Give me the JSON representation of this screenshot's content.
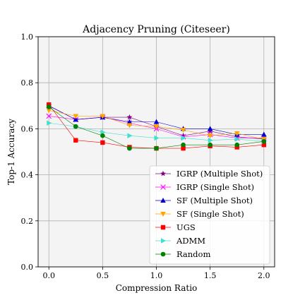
{
  "chart_data": {
    "type": "line",
    "title": "Adjacency Pruning (Citeseer)",
    "xlabel": "Compression Ratio",
    "ylabel": "Top-1 Accuracy",
    "xlim": [
      -0.1,
      2.1
    ],
    "ylim": [
      0.0,
      1.0
    ],
    "xticks": [
      "0.0",
      "0.5",
      "1.0",
      "1.5",
      "2.0"
    ],
    "yticks": [
      "0.0",
      "0.2",
      "0.4",
      "0.6",
      "0.8",
      "1.0"
    ],
    "grid": true,
    "legend_position": "lower-right",
    "x": [
      0.0,
      0.25,
      0.5,
      0.75,
      1.0,
      1.25,
      1.5,
      1.75,
      2.0
    ],
    "series": [
      {
        "name": "IGRP (Multiple Shot)",
        "color": "#800080",
        "marker": "star",
        "values": [
          0.7,
          0.64,
          0.65,
          0.65,
          0.61,
          0.57,
          0.59,
          0.565,
          0.555
        ]
      },
      {
        "name": "IGRP (Single Shot)",
        "color": "#ff00ff",
        "marker": "x",
        "values": [
          0.655,
          0.64,
          0.65,
          0.625,
          0.6,
          0.565,
          0.575,
          0.56,
          0.56
        ]
      },
      {
        "name": "SF (Multiple Shot)",
        "color": "#0000cc",
        "marker": "triangle-up",
        "values": [
          0.7,
          0.64,
          0.65,
          0.63,
          0.63,
          0.6,
          0.6,
          0.575,
          0.575
        ]
      },
      {
        "name": "SF (Single Shot)",
        "color": "#ffa500",
        "marker": "triangle-down",
        "values": [
          0.68,
          0.655,
          0.655,
          0.615,
          0.61,
          0.595,
          0.57,
          0.58,
          0.555
        ]
      },
      {
        "name": "UGS",
        "color": "#ff0000",
        "marker": "square",
        "values": [
          0.705,
          0.55,
          0.54,
          0.52,
          0.515,
          0.515,
          0.525,
          0.52,
          0.53
        ]
      },
      {
        "name": "ADMM",
        "color": "#40e0d0",
        "marker": "triangle-right",
        "values": [
          0.625,
          0.61,
          0.585,
          0.57,
          0.56,
          0.56,
          0.55,
          0.555,
          0.545
        ]
      },
      {
        "name": "Random",
        "color": "#008000",
        "marker": "circle",
        "values": [
          0.695,
          0.61,
          0.57,
          0.515,
          0.515,
          0.53,
          0.53,
          0.53,
          0.545
        ]
      }
    ]
  }
}
